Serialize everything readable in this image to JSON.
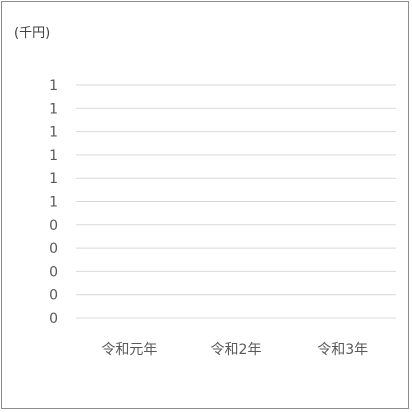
{
  "chart_data": {
    "type": "line",
    "unit_label": "(千円)",
    "categories": [
      "令和元年",
      "令和2年",
      "令和3年"
    ],
    "series": [],
    "y_tick_labels": [
      "1",
      "1",
      "1",
      "1",
      "1",
      "1",
      "0",
      "0",
      "0",
      "0",
      "0"
    ],
    "ylim": [
      0,
      1
    ],
    "grid": true,
    "legend": "none",
    "colors": {
      "grid": "#d9d9d9",
      "text": "#595959",
      "border": "#8c8c8c"
    }
  }
}
